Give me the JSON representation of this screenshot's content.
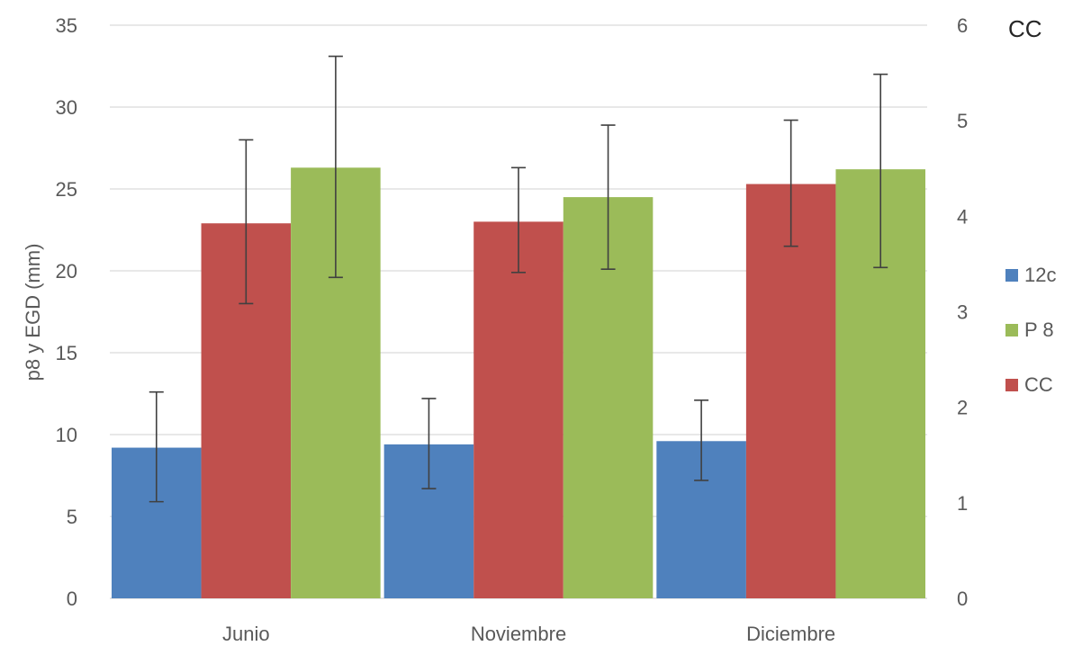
{
  "chart_data": {
    "type": "bar",
    "categories": [
      "Junio",
      "Noviembre",
      "Diciembre"
    ],
    "ylabel": "p8 y EGD (mm)",
    "ylim": [
      0,
      35
    ],
    "yticks": [
      0,
      5,
      10,
      15,
      20,
      25,
      30,
      35
    ],
    "y2label": "CC",
    "y2lim": [
      0,
      6
    ],
    "y2ticks": [
      0,
      1,
      2,
      3,
      4,
      5,
      6
    ],
    "grid": true,
    "legend_position": "right",
    "legend": [
      {
        "name": "12c",
        "color": "#4f81bd"
      },
      {
        "name": "P 8",
        "color": "#9bbb59"
      },
      {
        "name": "CC",
        "color": "#c0504d"
      }
    ],
    "series": [
      {
        "name": "12c",
        "color": "#4f81bd",
        "values": [
          9.2,
          9.4,
          9.6
        ],
        "error_low": [
          5.9,
          6.7,
          7.2
        ],
        "error_high": [
          12.6,
          12.2,
          12.1
        ]
      },
      {
        "name": "CC",
        "color": "#c0504d",
        "values": [
          22.9,
          23.0,
          25.3
        ],
        "error_low": [
          18.0,
          19.9,
          21.5
        ],
        "error_high": [
          28.0,
          26.3,
          29.2
        ]
      },
      {
        "name": "P 8",
        "color": "#9bbb59",
        "values": [
          26.3,
          24.5,
          26.2
        ],
        "error_low": [
          19.6,
          20.1,
          20.2
        ],
        "error_high": [
          33.1,
          28.9,
          32.0
        ]
      }
    ]
  }
}
